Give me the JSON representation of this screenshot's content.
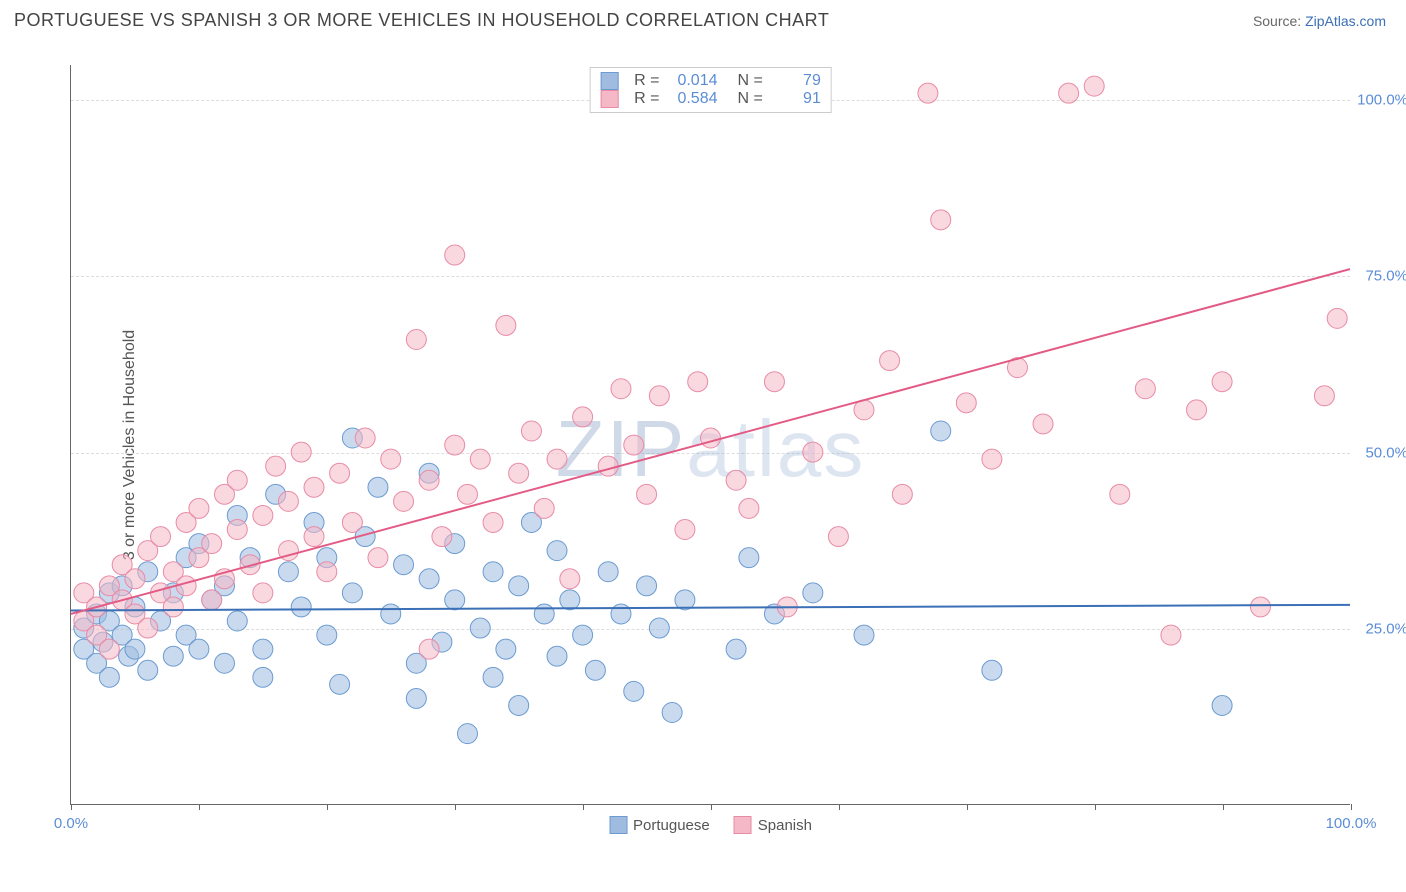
{
  "title": "PORTUGUESE VS SPANISH 3 OR MORE VEHICLES IN HOUSEHOLD CORRELATION CHART",
  "source_label": "Source:",
  "source_name": "ZipAtlas.com",
  "y_axis_label": "3 or more Vehicles in Household",
  "watermark_a": "ZIP",
  "watermark_b": "atlas",
  "chart": {
    "type": "scatter",
    "xlim": [
      0,
      100
    ],
    "ylim": [
      0,
      105
    ],
    "x_ticks": [
      0,
      10,
      20,
      30,
      40,
      50,
      60,
      70,
      80,
      90,
      100
    ],
    "x_tick_labels": {
      "0": "0.0%",
      "100": "100.0%"
    },
    "y_gridlines": [
      25,
      50,
      75,
      100
    ],
    "y_tick_labels": [
      "25.0%",
      "50.0%",
      "75.0%",
      "100.0%"
    ],
    "background_color": "#ffffff",
    "grid_color": "#dddddd",
    "axis_color": "#666666",
    "tick_label_color": "#5b8dd6",
    "marker_radius": 10,
    "marker_opacity": 0.55,
    "line_width": 2
  },
  "series": [
    {
      "name": "Portuguese",
      "color_fill": "#9fbce0",
      "color_stroke": "#6b9bd1",
      "color_line": "#3b6fb6",
      "r_label": "R =",
      "r_value": "0.014",
      "n_label": "N =",
      "n_value": "79",
      "trend": {
        "x1": 0,
        "y1": 27.5,
        "x2": 100,
        "y2": 28.3
      },
      "points": [
        [
          1,
          22
        ],
        [
          1,
          25
        ],
        [
          2,
          20
        ],
        [
          2,
          27
        ],
        [
          2.5,
          23
        ],
        [
          3,
          30
        ],
        [
          3,
          18
        ],
        [
          3,
          26
        ],
        [
          4,
          24
        ],
        [
          4,
          31
        ],
        [
          4.5,
          21
        ],
        [
          5,
          28
        ],
        [
          5,
          22
        ],
        [
          6,
          33
        ],
        [
          6,
          19
        ],
        [
          7,
          26
        ],
        [
          8,
          30
        ],
        [
          8,
          21
        ],
        [
          9,
          24
        ],
        [
          9,
          35
        ],
        [
          10,
          37
        ],
        [
          10,
          22
        ],
        [
          11,
          29
        ],
        [
          12,
          20
        ],
        [
          12,
          31
        ],
        [
          13,
          41
        ],
        [
          13,
          26
        ],
        [
          14,
          35
        ],
        [
          15,
          22
        ],
        [
          15,
          18
        ],
        [
          16,
          44
        ],
        [
          17,
          33
        ],
        [
          18,
          28
        ],
        [
          19,
          40
        ],
        [
          20,
          24
        ],
        [
          20,
          35
        ],
        [
          21,
          17
        ],
        [
          22,
          52
        ],
        [
          22,
          30
        ],
        [
          23,
          38
        ],
        [
          24,
          45
        ],
        [
          25,
          27
        ],
        [
          26,
          34
        ],
        [
          27,
          20
        ],
        [
          27,
          15
        ],
        [
          28,
          32
        ],
        [
          28,
          47
        ],
        [
          29,
          23
        ],
        [
          30,
          29
        ],
        [
          30,
          37
        ],
        [
          31,
          10
        ],
        [
          32,
          25
        ],
        [
          33,
          33
        ],
        [
          33,
          18
        ],
        [
          34,
          22
        ],
        [
          35,
          31
        ],
        [
          35,
          14
        ],
        [
          36,
          40
        ],
        [
          37,
          27
        ],
        [
          38,
          21
        ],
        [
          38,
          36
        ],
        [
          39,
          29
        ],
        [
          40,
          24
        ],
        [
          41,
          19
        ],
        [
          42,
          33
        ],
        [
          43,
          27
        ],
        [
          44,
          16
        ],
        [
          45,
          31
        ],
        [
          46,
          25
        ],
        [
          47,
          13
        ],
        [
          48,
          29
        ],
        [
          52,
          22
        ],
        [
          53,
          35
        ],
        [
          55,
          27
        ],
        [
          58,
          30
        ],
        [
          62,
          24
        ],
        [
          68,
          53
        ],
        [
          72,
          19
        ],
        [
          90,
          14
        ]
      ]
    },
    {
      "name": "Spanish",
      "color_fill": "#f4b8c7",
      "color_stroke": "#e88ba6",
      "color_line": "#e35a85",
      "r_label": "R =",
      "r_value": "0.584",
      "n_label": "N =",
      "n_value": "91",
      "trend": {
        "x1": 0,
        "y1": 27,
        "x2": 100,
        "y2": 76
      },
      "points": [
        [
          1,
          26
        ],
        [
          1,
          30
        ],
        [
          2,
          24
        ],
        [
          2,
          28
        ],
        [
          3,
          31
        ],
        [
          3,
          22
        ],
        [
          4,
          29
        ],
        [
          4,
          34
        ],
        [
          5,
          27
        ],
        [
          5,
          32
        ],
        [
          6,
          36
        ],
        [
          6,
          25
        ],
        [
          7,
          30
        ],
        [
          7,
          38
        ],
        [
          8,
          33
        ],
        [
          8,
          28
        ],
        [
          9,
          40
        ],
        [
          9,
          31
        ],
        [
          10,
          35
        ],
        [
          10,
          42
        ],
        [
          11,
          29
        ],
        [
          11,
          37
        ],
        [
          12,
          44
        ],
        [
          12,
          32
        ],
        [
          13,
          39
        ],
        [
          13,
          46
        ],
        [
          14,
          34
        ],
        [
          15,
          41
        ],
        [
          15,
          30
        ],
        [
          16,
          48
        ],
        [
          17,
          36
        ],
        [
          17,
          43
        ],
        [
          18,
          50
        ],
        [
          19,
          38
        ],
        [
          19,
          45
        ],
        [
          20,
          33
        ],
        [
          21,
          47
        ],
        [
          22,
          40
        ],
        [
          23,
          52
        ],
        [
          24,
          35
        ],
        [
          25,
          49
        ],
        [
          26,
          43
        ],
        [
          27,
          66
        ],
        [
          28,
          46
        ],
        [
          28,
          22
        ],
        [
          29,
          38
        ],
        [
          30,
          51
        ],
        [
          30,
          78
        ],
        [
          31,
          44
        ],
        [
          32,
          49
        ],
        [
          33,
          40
        ],
        [
          34,
          68
        ],
        [
          35,
          47
        ],
        [
          36,
          53
        ],
        [
          37,
          42
        ],
        [
          38,
          49
        ],
        [
          39,
          32
        ],
        [
          40,
          55
        ],
        [
          42,
          48
        ],
        [
          43,
          59
        ],
        [
          44,
          51
        ],
        [
          45,
          44
        ],
        [
          46,
          58
        ],
        [
          48,
          39
        ],
        [
          49,
          60
        ],
        [
          50,
          52
        ],
        [
          52,
          46
        ],
        [
          53,
          42
        ],
        [
          55,
          60
        ],
        [
          56,
          28
        ],
        [
          58,
          50
        ],
        [
          60,
          38
        ],
        [
          62,
          56
        ],
        [
          64,
          63
        ],
        [
          65,
          44
        ],
        [
          67,
          101
        ],
        [
          68,
          83
        ],
        [
          70,
          57
        ],
        [
          72,
          49
        ],
        [
          74,
          62
        ],
        [
          76,
          54
        ],
        [
          78,
          101
        ],
        [
          80,
          102
        ],
        [
          82,
          44
        ],
        [
          84,
          59
        ],
        [
          86,
          24
        ],
        [
          88,
          56
        ],
        [
          90,
          60
        ],
        [
          93,
          28
        ],
        [
          98,
          58
        ],
        [
          99,
          69
        ]
      ]
    }
  ],
  "bottom_legend": [
    {
      "label": "Portuguese",
      "fill": "#9fbce0",
      "stroke": "#6b9bd1"
    },
    {
      "label": "Spanish",
      "fill": "#f4b8c7",
      "stroke": "#e88ba6"
    }
  ]
}
